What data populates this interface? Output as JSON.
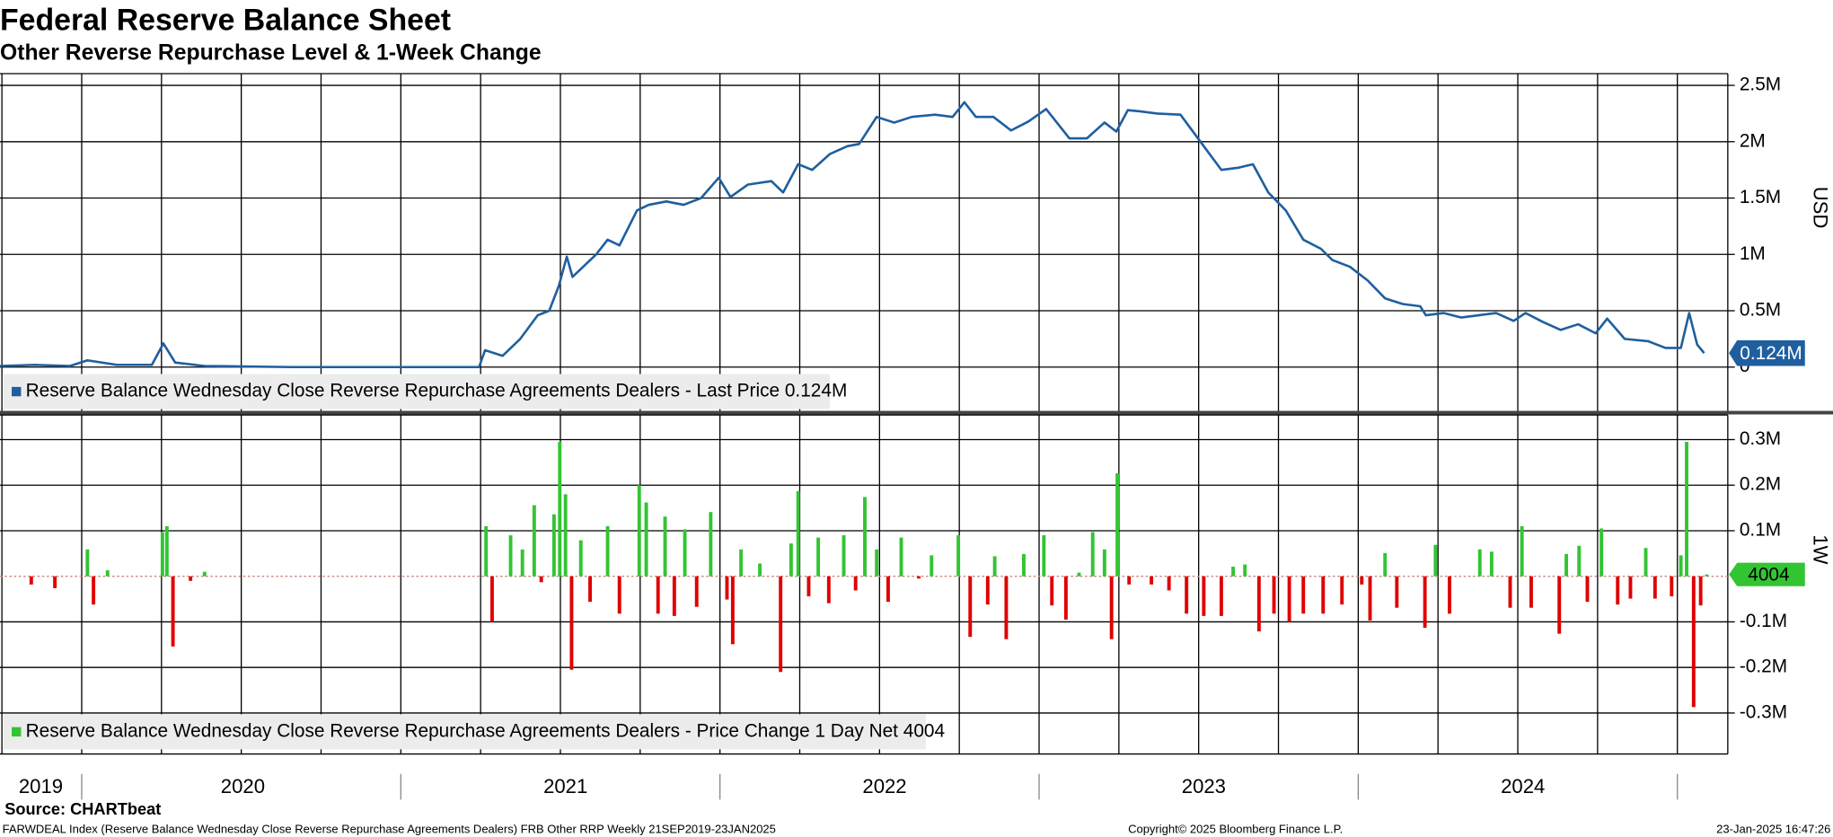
{
  "chart_data": [
    {
      "type": "line",
      "title": "Federal Reserve Balance Sheet",
      "subtitle": "Other Reverse Repurchase Level & 1-Week Change",
      "ylabel": "USD",
      "grid": true,
      "xlim": [
        2019.744,
        2025.158
      ],
      "xgrid": [
        2019.75,
        2020,
        2020.25,
        2020.5,
        2020.75,
        2021,
        2021.25,
        2021.5,
        2021.75,
        2022,
        2022.25,
        2022.5,
        2022.75,
        2023,
        2023.25,
        2023.5,
        2023.75,
        2024,
        2024.25,
        2024.5,
        2024.75,
        2025
      ],
      "ylim": [
        -394000,
        2604000
      ],
      "yticks": [
        0,
        {
          "value": 500000,
          "label": "0.5M"
        },
        {
          "value": 1000000,
          "label": "1M"
        },
        {
          "value": 1500000,
          "label": "1.5M"
        },
        {
          "value": 2000000,
          "label": "2M"
        },
        {
          "value": 2500000,
          "label": "2.5M"
        }
      ],
      "x": [
        2019.744,
        2019.853,
        2019.963,
        2020.018,
        2020.11,
        2020.22,
        2020.256,
        2020.293,
        2020.385,
        2020.659,
        2021.245,
        2021.264,
        2021.319,
        2021.374,
        2021.429,
        2021.465,
        2021.495,
        2021.52,
        2021.538,
        2021.575,
        2021.612,
        2021.648,
        2021.685,
        2021.74,
        2021.777,
        2021.832,
        2021.886,
        2021.941,
        2021.996,
        2022.033,
        2022.088,
        2022.161,
        2022.198,
        2022.245,
        2022.289,
        2022.344,
        2022.399,
        2022.436,
        2022.491,
        2022.546,
        2022.601,
        2022.674,
        2022.729,
        2022.766,
        2022.802,
        2022.857,
        2022.912,
        2022.967,
        2023.022,
        2023.095,
        2023.15,
        2023.205,
        2023.242,
        2023.278,
        2023.315,
        2023.37,
        2023.443,
        2023.516,
        2023.571,
        2023.626,
        2023.67,
        2023.718,
        2023.773,
        2023.828,
        2023.883,
        2023.919,
        2023.974,
        2024.029,
        2024.084,
        2024.139,
        2024.194,
        2024.212,
        2024.267,
        2024.322,
        2024.377,
        2024.432,
        2024.487,
        2024.524,
        2024.579,
        2024.634,
        2024.689,
        2024.744,
        2024.78,
        2024.835,
        2024.908,
        2024.963,
        2025.011,
        2025.037,
        2025.062,
        2025.084
      ],
      "series": [
        {
          "name": "Reserve Balance Wednesday Close Reverse Repurchase Agreements Dealers - Last Price 0.124M",
          "color": "#1f5f9f",
          "last_label": "0.124M",
          "values": [
            10000,
            20000,
            10000,
            60000,
            20000,
            20000,
            210000,
            40000,
            10000,
            0,
            0,
            150000,
            100000,
            250000,
            460000,
            500000,
            720000,
            980000,
            800000,
            900000,
            1000000,
            1130000,
            1080000,
            1390000,
            1440000,
            1470000,
            1440000,
            1500000,
            1680000,
            1510000,
            1620000,
            1650000,
            1550000,
            1800000,
            1750000,
            1890000,
            1960000,
            1980000,
            2220000,
            2170000,
            2220000,
            2240000,
            2220000,
            2350000,
            2220000,
            2220000,
            2100000,
            2180000,
            2290000,
            2030000,
            2030000,
            2170000,
            2090000,
            2280000,
            2270000,
            2250000,
            2240000,
            1960000,
            1750000,
            1770000,
            1800000,
            1550000,
            1390000,
            1130000,
            1050000,
            950000,
            890000,
            770000,
            610000,
            560000,
            540000,
            460000,
            480000,
            440000,
            460000,
            480000,
            410000,
            480000,
            400000,
            330000,
            380000,
            300000,
            430000,
            250000,
            230000,
            170000,
            170000,
            480000,
            200000,
            124000
          ]
        }
      ]
    },
    {
      "type": "bar",
      "ylabel": "1W",
      "grid": true,
      "xlim": [
        2019.744,
        2025.158
      ],
      "xgrid": [
        2019.75,
        2020,
        2020.25,
        2020.5,
        2020.75,
        2021,
        2021.25,
        2021.5,
        2021.75,
        2022,
        2022.25,
        2022.5,
        2022.75,
        2023,
        2023.25,
        2023.5,
        2023.75,
        2024,
        2024.25,
        2024.5,
        2024.75,
        2025
      ],
      "xticks": [
        2020,
        2021,
        2022,
        2023,
        2024,
        2025
      ],
      "year_labels": [
        {
          "value": 2019.872,
          "label": "2019"
        },
        {
          "value": 2020.505,
          "label": "2020"
        },
        {
          "value": 2021.516,
          "label": "2021"
        },
        {
          "value": 2022.516,
          "label": "2022"
        },
        {
          "value": 2023.516,
          "label": "2023"
        },
        {
          "value": 2024.516,
          "label": "2024"
        }
      ],
      "ylim": [
        -390000,
        354000
      ],
      "yticks": [
        {
          "value": -300000,
          "label": "-0.3M"
        },
        {
          "value": -200000,
          "label": "-0.2M"
        },
        {
          "value": -100000,
          "label": "-0.1M"
        },
        {
          "value": 100000,
          "label": "0.1M"
        },
        {
          "value": 200000,
          "label": "0.2M"
        },
        {
          "value": 300000,
          "label": "0.3M"
        }
      ],
      "x": [
        2019.842,
        2019.916,
        2020.018,
        2020.037,
        2020.081,
        2020.253,
        2020.267,
        2020.286,
        2020.341,
        2020.385,
        2021.267,
        2021.286,
        2021.344,
        2021.381,
        2021.418,
        2021.44,
        2021.48,
        2021.498,
        2021.516,
        2021.535,
        2021.564,
        2021.593,
        2021.648,
        2021.685,
        2021.747,
        2021.769,
        2021.806,
        2021.828,
        2021.857,
        2021.89,
        2021.927,
        2021.971,
        2022.022,
        2022.04,
        2022.066,
        2022.125,
        2022.19,
        2022.223,
        2022.245,
        2022.278,
        2022.308,
        2022.341,
        2022.388,
        2022.425,
        2022.454,
        2022.491,
        2022.527,
        2022.568,
        2022.623,
        2022.663,
        2022.747,
        2022.784,
        2022.839,
        2022.861,
        2022.897,
        2022.952,
        2023.015,
        2023.04,
        2023.084,
        2023.125,
        2023.168,
        2023.205,
        2023.227,
        2023.245,
        2023.282,
        2023.352,
        2023.407,
        2023.462,
        2023.516,
        2023.571,
        2023.608,
        2023.645,
        2023.689,
        2023.736,
        2023.784,
        2023.828,
        2023.89,
        2023.949,
        2024.011,
        2024.037,
        2024.084,
        2024.121,
        2024.209,
        2024.242,
        2024.286,
        2024.381,
        2024.418,
        2024.476,
        2024.513,
        2024.542,
        2024.63,
        2024.652,
        2024.692,
        2024.718,
        2024.762,
        2024.813,
        2024.853,
        2024.901,
        2024.93,
        2024.982,
        2025.011,
        2025.029,
        2025.051,
        2025.073,
        2025.092
      ],
      "series": [
        {
          "name": "Reserve Balance Wednesday Close Reverse Repurchase Agreements Dealers - Price Change 1 Day Net 4004",
          "color": "#33c433",
          "negative_color": "#e00000",
          "values": [
            -18000,
            -26000,
            59000,
            -62000,
            13000,
            97000,
            110000,
            -154000,
            -10000,
            10000,
            110000,
            -100000,
            90000,
            59000,
            156000,
            -13000,
            136000,
            295000,
            180000,
            -205000,
            79000,
            -56000,
            110000,
            -82000,
            200000,
            162000,
            -82000,
            131000,
            -87000,
            103000,
            -67000,
            141000,
            -51000,
            -149000,
            59000,
            28000,
            -210000,
            72000,
            187000,
            -44000,
            85000,
            -59000,
            90000,
            -31000,
            174000,
            59000,
            -56000,
            85000,
            -5000,
            46000,
            90000,
            -133000,
            -62000,
            44000,
            -138000,
            49000,
            90000,
            -64000,
            -95000,
            8000,
            97000,
            59000,
            -138000,
            226000,
            -18000,
            -18000,
            -31000,
            -82000,
            -87000,
            -87000,
            21000,
            26000,
            -121000,
            -82000,
            -100000,
            -82000,
            -82000,
            -62000,
            -18000,
            -97000,
            51000,
            -69000,
            -113000,
            69000,
            -82000,
            59000,
            54000,
            -69000,
            110000,
            -69000,
            -126000,
            49000,
            67000,
            -56000,
            105000,
            -62000,
            -49000,
            62000,
            -49000,
            -44000,
            46000,
            295000,
            -287000,
            -64000,
            4004
          ]
        }
      ]
    }
  ],
  "footer": {
    "source": "Source: CHARTbeat",
    "description": "FARWDEAL Index (Reserve Balance Wednesday Close Reverse Repurchase Agreements Dealers) FRB Other RRP  Weekly 21SEP2019-23JAN2025",
    "copyright": "Copyright© 2025 Bloomberg Finance L.P.",
    "timestamp": "23-Jan-2025 16:47:26"
  }
}
